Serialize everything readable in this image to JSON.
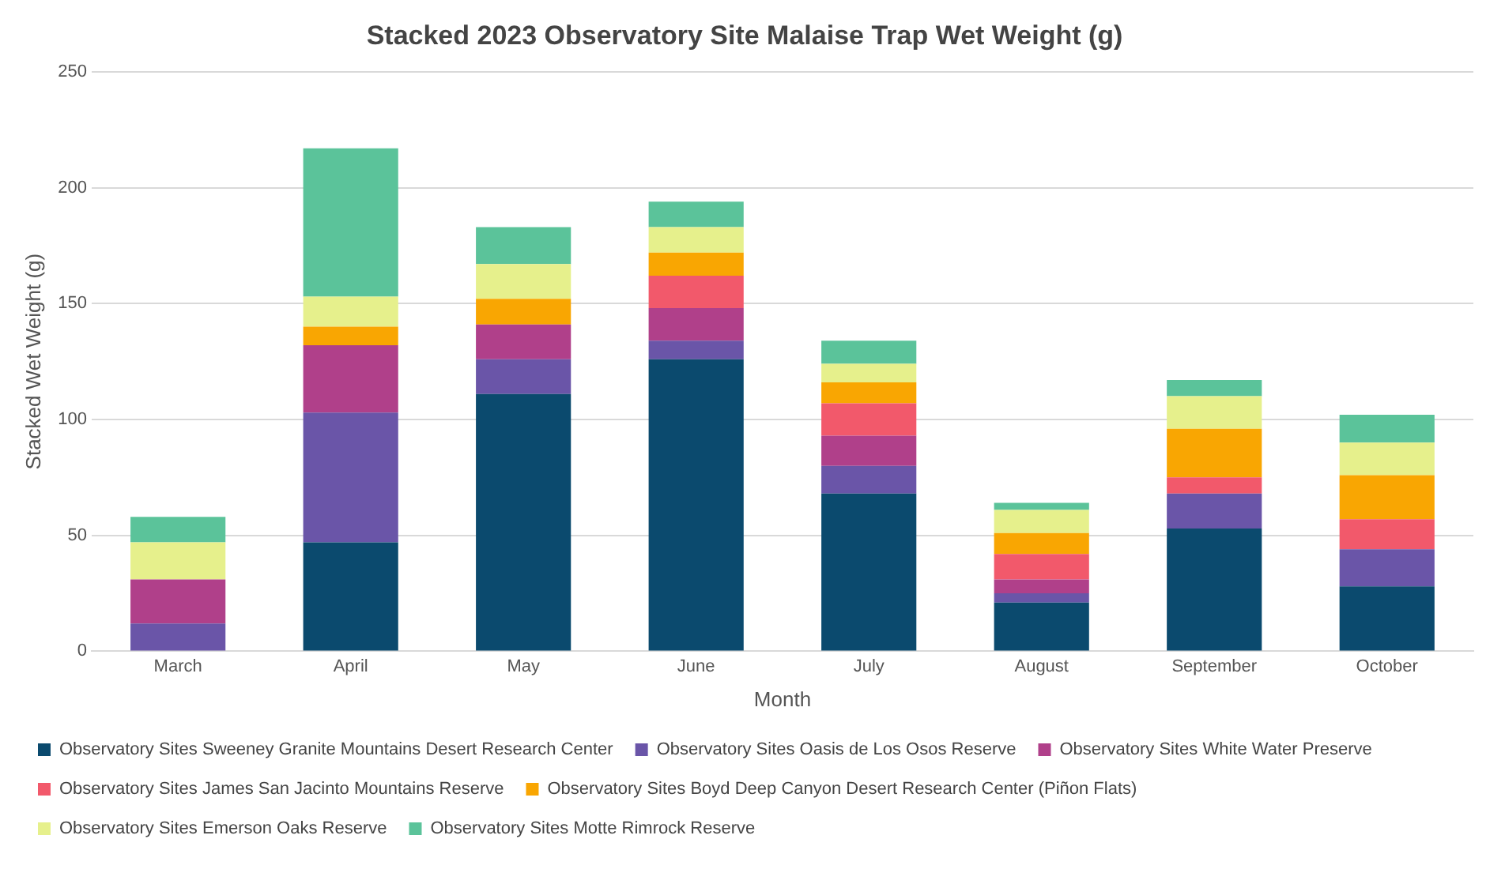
{
  "chart_data": {
    "type": "bar",
    "stacked": true,
    "title": "Stacked 2023 Observatory Site Malaise Trap Wet Weight (g)",
    "xlabel": "Month",
    "ylabel": "Stacked Wet Weight (g)",
    "categories": [
      "March",
      "April",
      "May",
      "June",
      "July",
      "August",
      "September",
      "October"
    ],
    "series": [
      {
        "name": "Observatory Sites Sweeney Granite Mountains Desert Research Center",
        "color": "#0b4a6e",
        "values": [
          0,
          47,
          111,
          126,
          68,
          21,
          53,
          28
        ]
      },
      {
        "name": "Observatory Sites Oasis de Los Osos Reserve",
        "color": "#6a55a8",
        "values": [
          12,
          56,
          15,
          8,
          12,
          4,
          15,
          16
        ]
      },
      {
        "name": "Observatory Sites White Water Preserve",
        "color": "#b0408a",
        "values": [
          19,
          29,
          15,
          14,
          13,
          6,
          0,
          0
        ]
      },
      {
        "name": "Observatory Sites James San Jacinto Mountains Reserve",
        "color": "#f2596b",
        "values": [
          0,
          0,
          0,
          14,
          14,
          11,
          7,
          13
        ]
      },
      {
        "name": "Observatory Sites Boyd Deep Canyon Desert Research Center (Piñon Flats)",
        "color": "#f9a602",
        "values": [
          0,
          8,
          11,
          10,
          9,
          9,
          21,
          19
        ]
      },
      {
        "name": "Observatory Sites Emerson Oaks Reserve",
        "color": "#e6f08c",
        "values": [
          16,
          13,
          15,
          11,
          8,
          10,
          14,
          14
        ]
      },
      {
        "name": "Observatory Sites Motte Rimrock Reserve",
        "color": "#5bc39a",
        "values": [
          11,
          64,
          16,
          11,
          10,
          3,
          7,
          12
        ]
      }
    ],
    "ylim": [
      0,
      250
    ],
    "yticks": [
      0,
      50,
      100,
      150,
      200,
      250
    ],
    "grid": "y",
    "legend": "bottom"
  }
}
